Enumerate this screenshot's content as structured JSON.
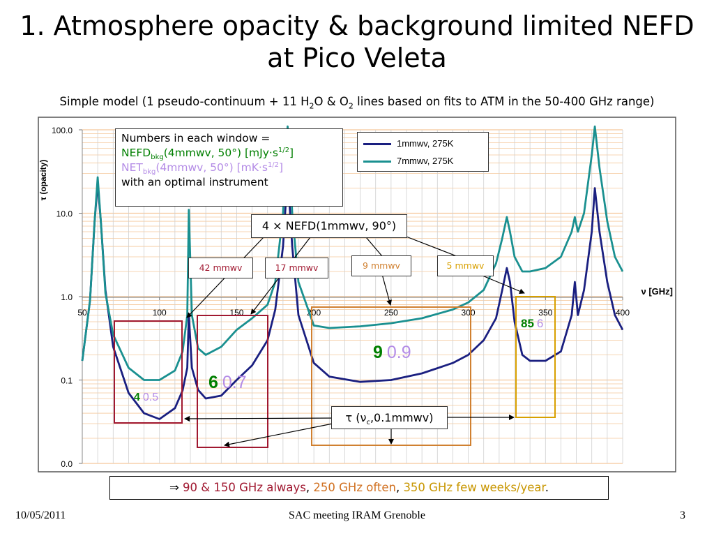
{
  "slide": {
    "title_line1": "1. Atmosphere opacity & background limited NEFD",
    "title_line2": "at Pico Veleta",
    "subtitle": {
      "p1": "Simple model (1 pseudo-continuum + 11 H",
      "s1": "2",
      "p2": "O & O",
      "s2": "2",
      "p3": " lines based on fits to ATM in the 50-400 GHz range)"
    },
    "footer_date": "10/05/2011",
    "footer_center": "SAC meeting IRAM Grenoble",
    "footer_page": "3"
  },
  "info_box": {
    "line1": "Numbers in each window =",
    "nefd_a": "NEFD",
    "nefd_sub": "bkg",
    "nefd_b": "(4mmwv, 50°) [mJy·s",
    "nefd_sup": "1/2",
    "nefd_c": "]",
    "net_a": "NET",
    "net_sub": "bkg",
    "net_b": "(4mmwv, 50°) [mK·s",
    "net_sup": "1/2",
    "net_c": "]",
    "line4": "with an optimal instrument"
  },
  "nefd_label": "4 × NEFD(1mmwv, 90°)",
  "pwv_labels": {
    "a": "42 mmwv",
    "b": "17 mmwv",
    "c": "9 mmwv",
    "d": "5 mmwv"
  },
  "tau_label": {
    "a": "τ (ν",
    "sub": "c",
    "b": ",0.1mmwv)"
  },
  "axis_unit": "ν [GHz]",
  "conclusion": {
    "arrow": "⇒ ",
    "p1": "90 & 150 GHz always",
    "sep1": ", ",
    "p2": "250 GHz often",
    "sep2": ", ",
    "p3": "350 GHz few weeks/year",
    "end": "."
  },
  "colors": {
    "series_1mm": "#1a1f80",
    "series_7mm": "#1a9090",
    "nefd_green": "#007f00",
    "net_purple": "#b48ce6",
    "red_box": "#a01830",
    "orange_box": "#d08030",
    "gold_box": "#d8a000",
    "grid_line": "#f5c79a"
  },
  "chart_data": {
    "type": "line",
    "title": "",
    "ylabel": "τ (opacity)",
    "xlabel": "ν [GHz]",
    "xlim": [
      50,
      400
    ],
    "ylim": [
      0.01,
      100
    ],
    "y_scale": "log",
    "x_ticks": [
      50,
      100,
      150,
      200,
      250,
      300,
      350,
      400
    ],
    "y_ticks": [
      {
        "value": 100,
        "label": "100.0"
      },
      {
        "value": 10,
        "label": "10.0"
      },
      {
        "value": 1,
        "label": "1.0"
      },
      {
        "value": 0.1,
        "label": "0.1"
      },
      {
        "value": 0.01,
        "label": "0.0"
      }
    ],
    "grid": true,
    "legend_position": "top-right",
    "series": [
      {
        "name": "1mmwv, 275K",
        "x": [
          50,
          55,
          58,
          60,
          62,
          65,
          70,
          80,
          90,
          100,
          110,
          115,
          118,
          119,
          121,
          125,
          130,
          140,
          150,
          160,
          170,
          175,
          180,
          183,
          186,
          190,
          200,
          210,
          230,
          250,
          270,
          290,
          300,
          310,
          318,
          322,
          325,
          327,
          330,
          335,
          340,
          350,
          360,
          367,
          369,
          371,
          375,
          380,
          382,
          385,
          390,
          395,
          400
        ],
        "y": [
          0.17,
          0.9,
          8,
          23,
          8,
          1.2,
          0.25,
          0.07,
          0.04,
          0.034,
          0.046,
          0.075,
          0.14,
          0.6,
          0.14,
          0.076,
          0.06,
          0.065,
          0.1,
          0.15,
          0.3,
          0.7,
          4,
          30,
          4,
          0.6,
          0.16,
          0.11,
          0.095,
          0.1,
          0.12,
          0.16,
          0.2,
          0.3,
          0.55,
          1.2,
          2.2,
          1.5,
          0.5,
          0.2,
          0.17,
          0.17,
          0.22,
          0.6,
          1.5,
          0.6,
          1.2,
          6,
          20,
          6,
          1.5,
          0.6,
          0.4
        ]
      },
      {
        "name": "7mmwv, 275K",
        "x": [
          50,
          55,
          58,
          60,
          62,
          65,
          70,
          80,
          90,
          100,
          110,
          115,
          118,
          119,
          121,
          125,
          130,
          140,
          150,
          160,
          170,
          175,
          180,
          183,
          186,
          190,
          200,
          210,
          230,
          250,
          270,
          290,
          300,
          310,
          318,
          322,
          325,
          327,
          330,
          335,
          340,
          350,
          360,
          367,
          369,
          371,
          375,
          380,
          382,
          385,
          390,
          395,
          400
        ],
        "y": [
          0.17,
          0.9,
          8,
          27,
          8,
          1.1,
          0.35,
          0.14,
          0.1,
          0.1,
          0.13,
          0.22,
          0.6,
          11,
          0.6,
          0.24,
          0.2,
          0.25,
          0.4,
          0.55,
          0.8,
          1.5,
          10,
          110,
          10,
          1.5,
          0.45,
          0.42,
          0.44,
          0.48,
          0.55,
          0.7,
          0.85,
          1.2,
          2.5,
          5,
          9,
          6,
          3,
          2,
          2,
          2.2,
          3,
          6,
          9,
          6,
          10,
          50,
          110,
          35,
          8,
          3,
          2
        ]
      }
    ],
    "windows": [
      {
        "pwv": "42 mmwv",
        "nefd": "4",
        "net": "0.5"
      },
      {
        "pwv": "17 mmwv",
        "nefd": "6",
        "net": "0.7"
      },
      {
        "pwv": "9 mmwv",
        "nefd": "9",
        "net": "0.9"
      },
      {
        "pwv": "5 mmwv",
        "nefd": "85",
        "net": "6"
      }
    ]
  }
}
